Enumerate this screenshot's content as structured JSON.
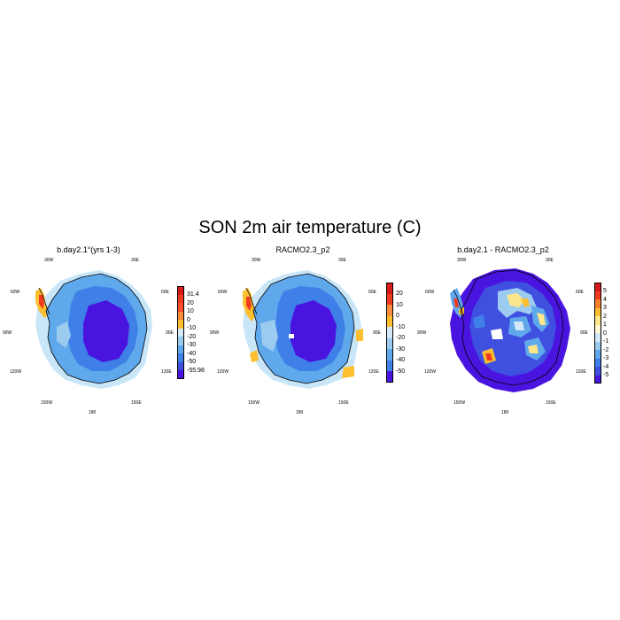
{
  "title": "SON 2m air temperature (C)",
  "panels": [
    {
      "title": "b.day2.1°(yrs 1-3)",
      "lon_labels": {
        "w30": "30W",
        "e30": "30E",
        "w60": "60W",
        "e60": "60E",
        "w90": "90W",
        "e90": "90E",
        "w120": "120W",
        "e120": "120E",
        "w150": "150W",
        "e150": "150E",
        "s180": "180"
      },
      "colorbar": {
        "labels": [
          "31.4",
          "20",
          "10",
          "0",
          "-10",
          "-20",
          "-30",
          "-40",
          "-50",
          "-55.98"
        ],
        "colors": [
          "#d7191c",
          "#f03b20",
          "#fc4e2a",
          "#fd8d3c",
          "#fdbf2f",
          "#d4e9f7",
          "#9ccbf0",
          "#5fa8ec",
          "#3f7fe8",
          "#3f4fe0",
          "#4a14e0"
        ]
      }
    },
    {
      "title": "RACMO2.3_p2",
      "lon_labels": {
        "w30": "30W",
        "e30": "30E",
        "w60": "60W",
        "e60": "60E",
        "w90": "90W",
        "e90": "90E",
        "w120": "120W",
        "e120": "120E",
        "w150": "150W",
        "e150": "150E",
        "s180": "180"
      },
      "colorbar": {
        "labels": [
          "20",
          "10",
          "0",
          "-10",
          "-20",
          "-30",
          "-40",
          "-50"
        ],
        "colors": [
          "#d7191c",
          "#f03b20",
          "#fd8d3c",
          "#fdbf2f",
          "#d4e9f7",
          "#9ccbf0",
          "#5fa8ec",
          "#3f7fe8",
          "#4a14e0"
        ]
      }
    },
    {
      "title": "b.day2.1 - RACMO2.3_p2",
      "lon_labels": {
        "w30": "30W",
        "e30": "30E",
        "w60": "60W",
        "e60": "60E",
        "w90": "90W",
        "e90": "90E",
        "w120": "120W",
        "e120": "120E",
        "w150": "150W",
        "e150": "150E",
        "s180": "180"
      },
      "colorbar": {
        "labels": [
          "5",
          "4",
          "3",
          "2",
          "1",
          "0",
          "-1",
          "-2",
          "-3",
          "-4",
          "-5"
        ],
        "colors": [
          "#d7191c",
          "#f03b20",
          "#fc7d2a",
          "#fdbf2f",
          "#fde68a",
          "#fff8d0",
          "#d4e9f7",
          "#9ccbf0",
          "#5fa8ec",
          "#3f7fe8",
          "#3f4fe0",
          "#4a14e0"
        ]
      }
    }
  ]
}
